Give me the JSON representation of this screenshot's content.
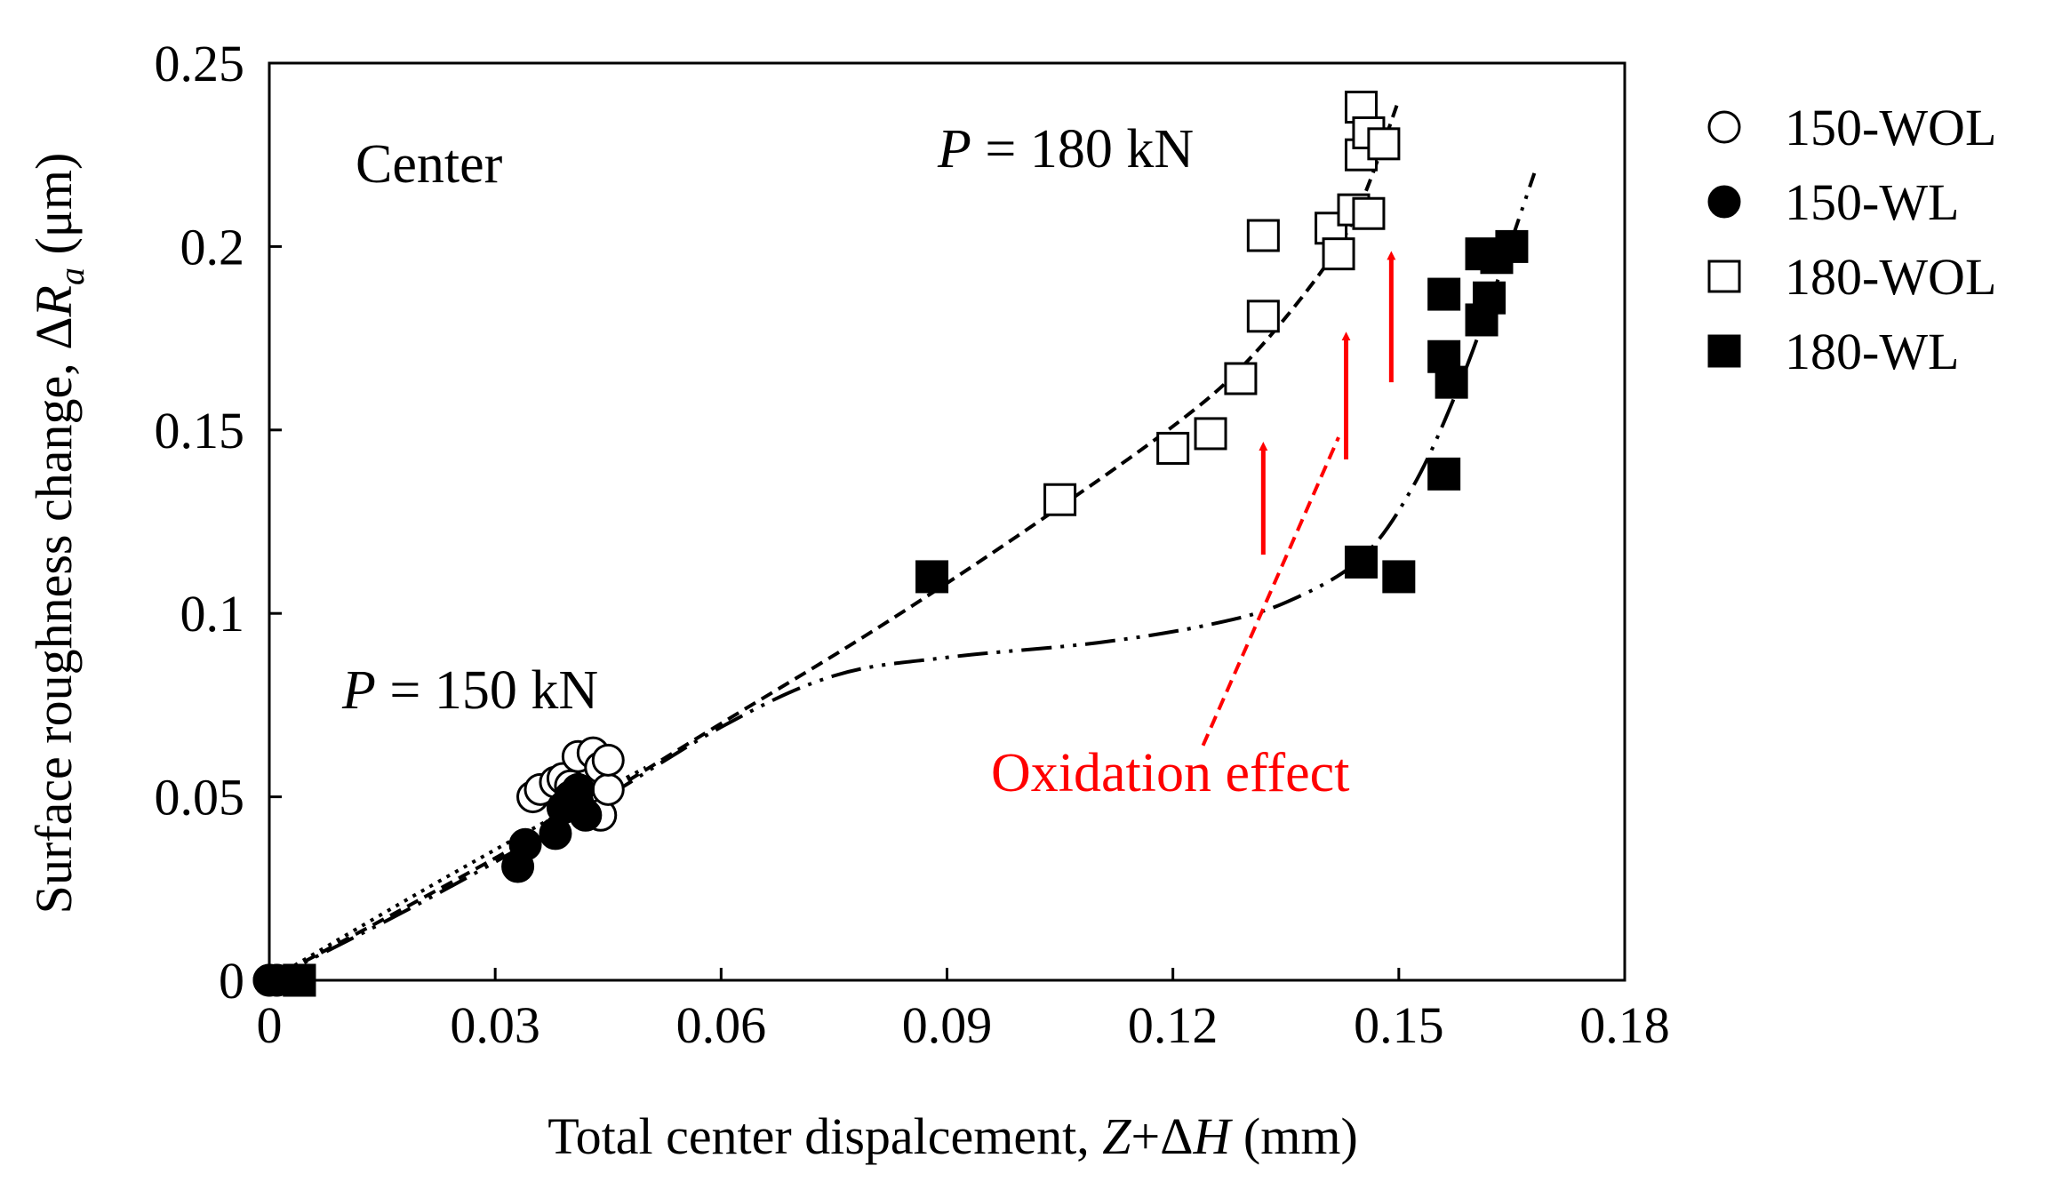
{
  "chart_data": {
    "type": "scatter",
    "xlabel_parts": [
      "Total center dispalcement, ",
      "Z",
      "+Δ",
      "H",
      " (mm)"
    ],
    "ylabel_parts": [
      "Surface roughness change, Δ",
      "R",
      "a",
      " (μm)"
    ],
    "xlim": [
      0,
      0.18
    ],
    "ylim": [
      0,
      0.25
    ],
    "x_ticks": [
      0,
      0.03,
      0.06,
      0.09,
      0.12,
      0.15,
      0.18
    ],
    "x_tick_labels": [
      "0",
      "0.03",
      "0.06",
      "0.09",
      "0.12",
      "0.15",
      "0.18"
    ],
    "y_ticks": [
      0,
      0.05,
      0.1,
      0.15,
      0.2,
      0.25
    ],
    "y_tick_labels": [
      "0",
      "0.05",
      "0.1",
      "0.15",
      "0.2",
      "0.25"
    ],
    "grid": false,
    "legend_position": "outside-right",
    "series": [
      {
        "name": "150-WOL",
        "marker": "circle-open",
        "points": [
          [
            0,
            0
          ],
          [
            0.001,
            0
          ],
          [
            0.035,
            0.05
          ],
          [
            0.036,
            0.052
          ],
          [
            0.038,
            0.054
          ],
          [
            0.039,
            0.055
          ],
          [
            0.04,
            0.053
          ],
          [
            0.041,
            0.061
          ],
          [
            0.042,
            0.05
          ],
          [
            0.043,
            0.062
          ],
          [
            0.043,
            0.048
          ],
          [
            0.044,
            0.045
          ],
          [
            0.044,
            0.058
          ],
          [
            0.045,
            0.052
          ],
          [
            0.045,
            0.06
          ]
        ]
      },
      {
        "name": "150-WL",
        "marker": "circle-filled",
        "points": [
          [
            0,
            0
          ],
          [
            0.001,
            0
          ],
          [
            0.033,
            0.031
          ],
          [
            0.034,
            0.037
          ],
          [
            0.038,
            0.04
          ],
          [
            0.039,
            0.047
          ],
          [
            0.04,
            0.05
          ],
          [
            0.041,
            0.052
          ],
          [
            0.041,
            0.048
          ],
          [
            0.042,
            0.045
          ]
        ]
      },
      {
        "name": "180-WOL",
        "marker": "square-open",
        "points": [
          [
            0.004,
            0
          ],
          [
            0.105,
            0.131
          ],
          [
            0.12,
            0.145
          ],
          [
            0.125,
            0.149
          ],
          [
            0.129,
            0.164
          ],
          [
            0.132,
            0.203
          ],
          [
            0.132,
            0.181
          ],
          [
            0.141,
            0.205
          ],
          [
            0.142,
            0.198
          ],
          [
            0.144,
            0.21
          ],
          [
            0.145,
            0.238
          ],
          [
            0.145,
            0.225
          ],
          [
            0.146,
            0.231
          ],
          [
            0.148,
            0.228
          ],
          [
            0.146,
            0.209
          ]
        ]
      },
      {
        "name": "180-WL",
        "marker": "square-filled",
        "points": [
          [
            0.004,
            0
          ],
          [
            0.088,
            0.11
          ],
          [
            0.145,
            0.114
          ],
          [
            0.15,
            0.11
          ],
          [
            0.156,
            0.138
          ],
          [
            0.156,
            0.17
          ],
          [
            0.156,
            0.187
          ],
          [
            0.157,
            0.163
          ],
          [
            0.161,
            0.198
          ],
          [
            0.161,
            0.18
          ],
          [
            0.162,
            0.186
          ],
          [
            0.163,
            0.197
          ],
          [
            0.165,
            0.2
          ]
        ]
      }
    ],
    "trend_lines": [
      {
        "name": "P = 180 kN fit",
        "style": "dashed",
        "points": [
          [
            0,
            0
          ],
          [
            0.02,
            0.022
          ],
          [
            0.04,
            0.045
          ],
          [
            0.06,
            0.07
          ],
          [
            0.08,
            0.095
          ],
          [
            0.1,
            0.122
          ],
          [
            0.12,
            0.151
          ],
          [
            0.13,
            0.169
          ],
          [
            0.14,
            0.194
          ],
          [
            0.145,
            0.212
          ],
          [
            0.15,
            0.24
          ]
        ]
      },
      {
        "name": "P = 150 kN fit",
        "style": "dotted",
        "points": [
          [
            0,
            0
          ],
          [
            0.02,
            0.024
          ],
          [
            0.04,
            0.047
          ],
          [
            0.05,
            0.058
          ]
        ]
      },
      {
        "name": "180-WL fit",
        "style": "dash-dot-dot",
        "points": [
          [
            0,
            0
          ],
          [
            0.02,
            0.021
          ],
          [
            0.04,
            0.044
          ],
          [
            0.06,
            0.069
          ],
          [
            0.075,
            0.083
          ],
          [
            0.09,
            0.088
          ],
          [
            0.11,
            0.092
          ],
          [
            0.125,
            0.097
          ],
          [
            0.135,
            0.103
          ],
          [
            0.145,
            0.115
          ],
          [
            0.152,
            0.135
          ],
          [
            0.158,
            0.162
          ],
          [
            0.163,
            0.19
          ],
          [
            0.168,
            0.22
          ]
        ]
      }
    ],
    "annotations": {
      "region_label": "Center",
      "p180_label": [
        "P",
        " = 180 kN"
      ],
      "p150_label": [
        "P",
        " = 150 kN"
      ],
      "oxidation_label": "Oxidation effect"
    },
    "oxidation_arrows": [
      {
        "x": 0.132,
        "y_from": 0.116,
        "y_to": 0.148
      },
      {
        "x": 0.143,
        "y_from": 0.142,
        "y_to": 0.178
      },
      {
        "x": 0.149,
        "y_from": 0.163,
        "y_to": 0.2
      }
    ],
    "oxidation_pointer": {
      "from": [
        0.124,
        0.064
      ],
      "to": [
        0.142,
        0.148
      ]
    },
    "colors": {
      "axis": "#000000",
      "marker": "#000000",
      "annotation": "#ff0000"
    }
  }
}
